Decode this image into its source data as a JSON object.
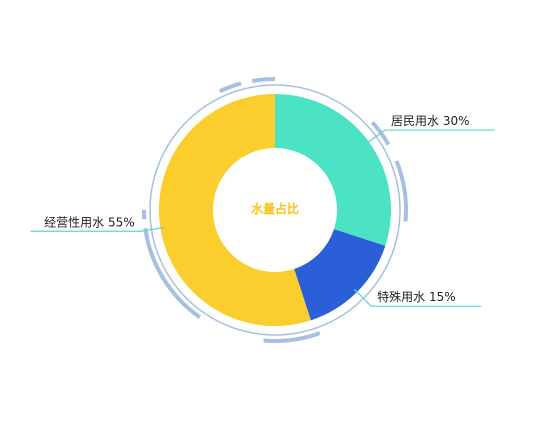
{
  "chart_data": {
    "type": "pie",
    "variant": "donut",
    "center_title": "水量占比",
    "slices": [
      {
        "name": "居民用水",
        "value": 30,
        "label": "居民用水 30%",
        "color": "#4be3c4"
      },
      {
        "name": "特殊用水",
        "value": 15,
        "label": "特殊用水 15%",
        "color": "#2b5fd8"
      },
      {
        "name": "经营性用水",
        "value": 55,
        "label": "经营性用水 55%",
        "color": "#fbcd2d"
      }
    ],
    "leader_line_color": "#5fd6cc",
    "ring_color": "#a7bfe0",
    "legend": "none"
  }
}
